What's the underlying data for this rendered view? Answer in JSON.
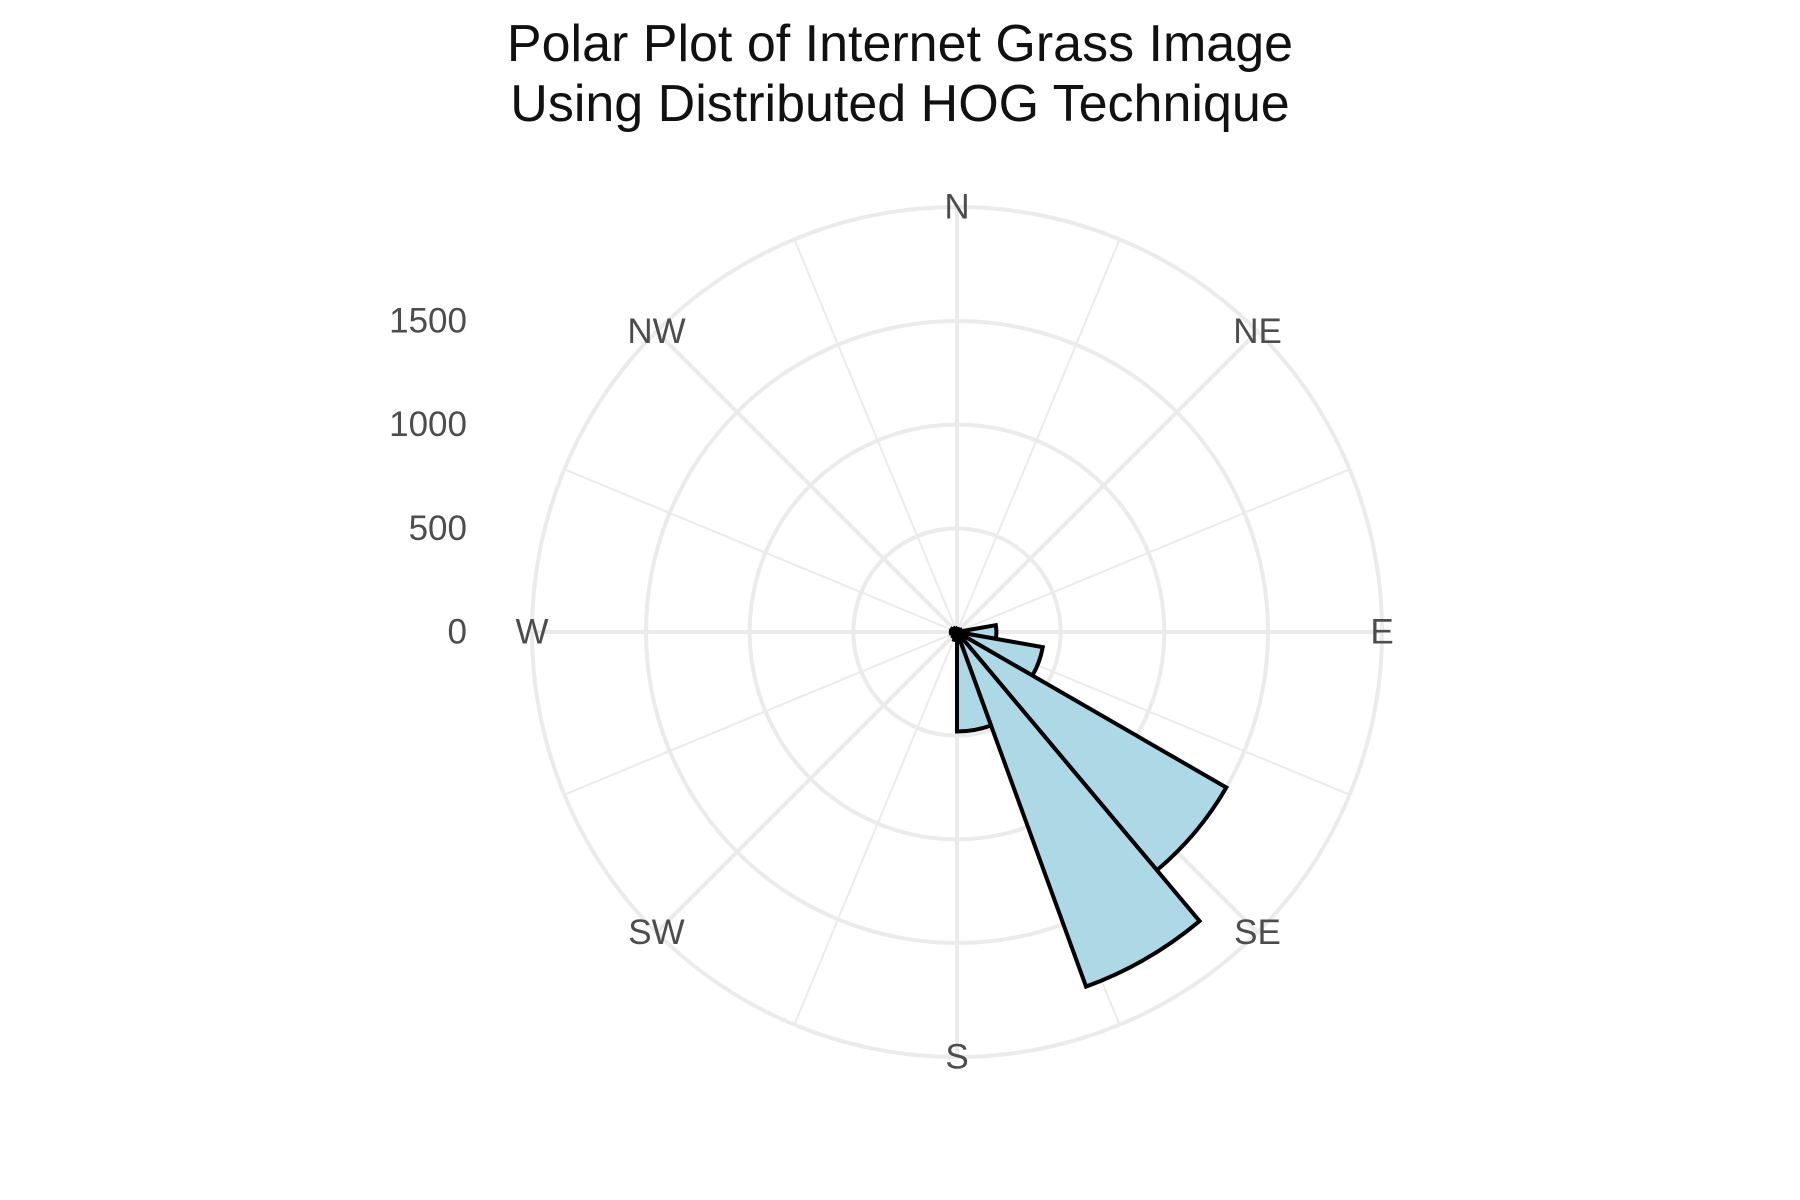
{
  "chart_data": {
    "type": "bar",
    "coordinate_system": "polar",
    "title": "Polar Plot of Internet Grass Image\nUsing Distributed HOG Technique",
    "title_lines": [
      "Polar Plot of Internet Grass Image",
      "Using Distributed HOG Technique"
    ],
    "directions": [
      "N",
      "NE",
      "E",
      "SE",
      "S",
      "SW",
      "W",
      "NW"
    ],
    "r_ticks": [
      0,
      500,
      1000,
      1500
    ],
    "r_tick_labels": [
      "0",
      "500",
      "1000",
      "1500"
    ],
    "rlim": [
      0,
      2050
    ],
    "bin_width_deg": 20,
    "bins": [
      {
        "angle_start": 0,
        "angle_end": 20,
        "value": 15
      },
      {
        "angle_start": 20,
        "angle_end": 40,
        "value": 12
      },
      {
        "angle_start": 40,
        "angle_end": 60,
        "value": 15
      },
      {
        "angle_start": 60,
        "angle_end": 80,
        "value": 20
      },
      {
        "angle_start": 80,
        "angle_end": 100,
        "value": 190
      },
      {
        "angle_start": 100,
        "angle_end": 120,
        "value": 420
      },
      {
        "angle_start": 120,
        "angle_end": 140,
        "value": 1500
      },
      {
        "angle_start": 140,
        "angle_end": 160,
        "value": 1820
      },
      {
        "angle_start": 160,
        "angle_end": 180,
        "value": 480
      },
      {
        "angle_start": 180,
        "angle_end": 200,
        "value": 40
      },
      {
        "angle_start": 200,
        "angle_end": 220,
        "value": 30
      },
      {
        "angle_start": 220,
        "angle_end": 240,
        "value": 25
      },
      {
        "angle_start": 240,
        "angle_end": 260,
        "value": 25
      },
      {
        "angle_start": 260,
        "angle_end": 280,
        "value": 30
      },
      {
        "angle_start": 280,
        "angle_end": 300,
        "value": 28
      },
      {
        "angle_start": 300,
        "angle_end": 320,
        "value": 22
      },
      {
        "angle_start": 320,
        "angle_end": 340,
        "value": 18
      },
      {
        "angle_start": 340,
        "angle_end": 360,
        "value": 14
      }
    ],
    "grid": true,
    "legend": "none",
    "colors": {
      "bar_fill": "#add8e6",
      "bar_stroke": "#000000",
      "grid": "#ebebeb",
      "label_text": "#4d4d4d",
      "title_text": "#111111"
    }
  }
}
